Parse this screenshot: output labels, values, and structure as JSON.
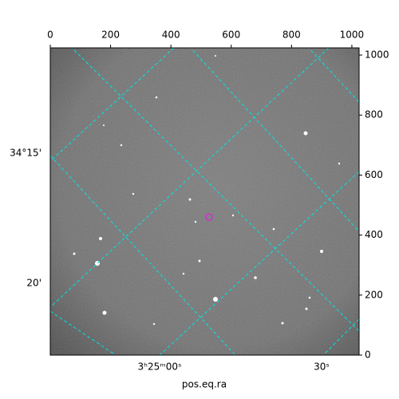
{
  "chart_data": {
    "type": "image",
    "xlabel": "pos.eq.ra",
    "xlim": [
      0,
      1024
    ],
    "xticks": [
      0,
      200,
      400,
      600,
      800,
      1000
    ],
    "ylim": [
      0,
      1024
    ],
    "yticks": [
      0,
      200,
      400,
      600,
      800,
      1000
    ],
    "ra_ticks": [
      "3ʰ25ᵐ00ˢ",
      "30ˢ"
    ],
    "dec_ticks": [
      "34°15'",
      "20'"
    ]
  }
}
